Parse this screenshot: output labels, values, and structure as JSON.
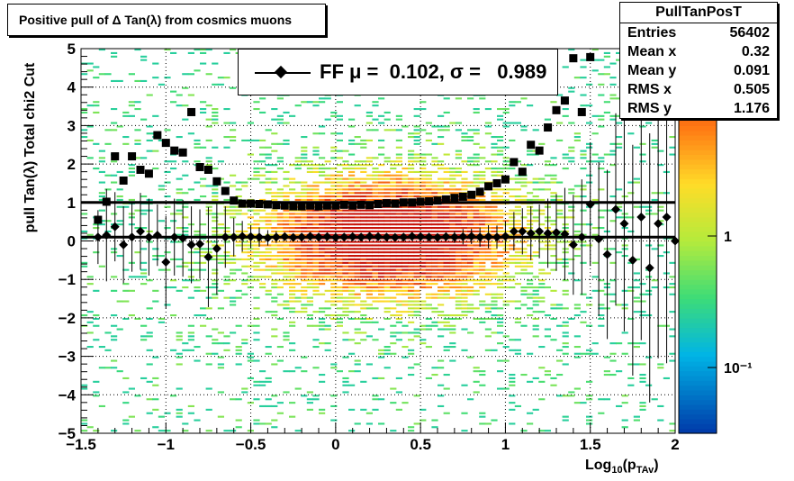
{
  "title": "Positive pull of Δ Tan(λ) from cosmics muons",
  "stats": {
    "name": "PullTanPosT",
    "rows": [
      {
        "k": "Entries",
        "v": "56402"
      },
      {
        "k": "Mean x",
        "v": "0.32"
      },
      {
        "k": "Mean y",
        "v": "0.091"
      },
      {
        "k": "RMS x",
        "v": "0.505"
      },
      {
        "k": "RMS y",
        "v": "1.176"
      }
    ]
  },
  "legend": {
    "text": "FF μ =  0.102, σ =   0.989"
  },
  "chart_data": {
    "type": "heatmap",
    "xlabel": "Log10(pTAv)",
    "ylabel": "pull Tan(λ)  Total chi2 Cut",
    "xlim": [
      -1.5,
      2
    ],
    "ylim": [
      -5,
      5
    ],
    "x_ticks": [
      "−1.5",
      "−1",
      "−0.5",
      "0",
      "0.5",
      "1",
      "1.5",
      "2"
    ],
    "y_ticks": [
      "−5",
      "−4",
      "−3",
      "−2",
      "−1",
      "0",
      "1",
      "2",
      "3",
      "4",
      "5"
    ],
    "colorbar": {
      "scale": "log",
      "tick_labels": [
        "10⁻¹",
        "1"
      ]
    },
    "grid": true,
    "reference_lines": [
      0.1,
      1.0
    ],
    "series": [
      {
        "name": "mean",
        "marker": "diamond",
        "x": [
          -1.4,
          -1.35,
          -1.3,
          -1.25,
          -1.2,
          -1.15,
          -1.1,
          -1.05,
          -1.0,
          -0.95,
          -0.9,
          -0.85,
          -0.8,
          -0.75,
          -0.7,
          -0.65,
          -0.6,
          -0.55,
          -0.5,
          -0.45,
          -0.4,
          -0.35,
          -0.3,
          -0.25,
          -0.2,
          -0.15,
          -0.1,
          -0.05,
          0.0,
          0.05,
          0.1,
          0.15,
          0.2,
          0.25,
          0.3,
          0.35,
          0.4,
          0.45,
          0.5,
          0.55,
          0.6,
          0.65,
          0.7,
          0.75,
          0.8,
          0.85,
          0.9,
          0.95,
          1.0,
          1.05,
          1.1,
          1.15,
          1.2,
          1.25,
          1.3,
          1.35,
          1.4,
          1.45,
          1.5,
          1.55,
          1.6,
          1.65,
          1.7,
          1.75,
          1.8,
          1.85,
          1.9,
          1.95,
          2.0
        ],
        "y": [
          0.1,
          0.15,
          0.37,
          -0.1,
          0.1,
          0.25,
          0.1,
          0.15,
          -0.55,
          0.1,
          0.07,
          -0.1,
          -0.08,
          -0.42,
          -0.2,
          0.1,
          0.1,
          0.12,
          0.11,
          0.1,
          0.08,
          0.1,
          0.11,
          0.09,
          0.1,
          0.12,
          0.1,
          0.11,
          0.09,
          0.1,
          0.11,
          0.1,
          0.12,
          0.11,
          0.1,
          0.09,
          0.1,
          0.12,
          0.11,
          0.1,
          0.09,
          0.11,
          0.1,
          0.11,
          0.12,
          0.1,
          0.11,
          0.1,
          0.12,
          0.25,
          0.25,
          0.2,
          0.25,
          0.2,
          0.22,
          0.18,
          -0.1,
          0.1,
          0.95,
          0.05,
          -0.35,
          0.82,
          0.45,
          -0.5,
          0.62,
          -0.7,
          0.45,
          0.62,
          0.0
        ],
        "err": [
          0.7,
          1.2,
          0.9,
          1.0,
          0.9,
          1.0,
          1.0,
          0.8,
          1.2,
          1.0,
          1.0,
          1.0,
          0.9,
          1.3,
          1.2,
          0.8,
          0.5,
          0.4,
          0.3,
          0.25,
          0.2,
          0.15,
          0.1,
          0.1,
          0.1,
          0.08,
          0.08,
          0.08,
          0.08,
          0.08,
          0.08,
          0.08,
          0.08,
          0.08,
          0.08,
          0.08,
          0.08,
          0.08,
          0.08,
          0.1,
          0.1,
          0.1,
          0.15,
          0.2,
          0.2,
          0.25,
          0.3,
          0.3,
          0.4,
          0.5,
          0.6,
          0.7,
          0.7,
          0.9,
          1.0,
          1.2,
          1.3,
          1.5,
          1.6,
          2.0,
          2.2,
          2.5,
          2.8,
          3.0,
          3.2,
          3.5,
          3.5,
          3.8,
          4.0
        ]
      },
      {
        "name": "RMS",
        "marker": "square",
        "x": [
          -1.4,
          -1.35,
          -1.3,
          -1.25,
          -1.2,
          -1.15,
          -1.1,
          -1.05,
          -1.0,
          -0.95,
          -0.9,
          -0.85,
          -0.8,
          -0.75,
          -0.7,
          -0.65,
          -0.6,
          -0.55,
          -0.5,
          -0.45,
          -0.4,
          -0.35,
          -0.3,
          -0.25,
          -0.2,
          -0.15,
          -0.1,
          -0.05,
          0.0,
          0.05,
          0.1,
          0.15,
          0.2,
          0.25,
          0.3,
          0.35,
          0.4,
          0.45,
          0.5,
          0.55,
          0.6,
          0.65,
          0.7,
          0.75,
          0.8,
          0.85,
          0.9,
          0.95,
          1.0,
          1.05,
          1.1,
          1.15,
          1.2,
          1.25,
          1.3,
          1.35,
          1.4,
          1.45,
          1.5
        ],
        "y": [
          0.55,
          1.02,
          2.2,
          1.57,
          2.2,
          1.85,
          1.75,
          2.75,
          2.55,
          2.35,
          2.3,
          3.35,
          1.92,
          1.85,
          1.55,
          1.3,
          1.05,
          0.97,
          0.97,
          0.96,
          0.95,
          0.93,
          0.92,
          0.9,
          0.9,
          0.92,
          0.9,
          0.92,
          0.92,
          0.94,
          0.92,
          0.94,
          0.93,
          0.96,
          0.98,
          0.97,
          1.0,
          1.0,
          1.02,
          1.03,
          1.05,
          1.08,
          1.12,
          1.15,
          1.2,
          1.28,
          1.42,
          1.5,
          1.6,
          2.05,
          1.8,
          2.5,
          2.35,
          2.95,
          3.4,
          3.65,
          4.75,
          3.35,
          4.78
        ]
      }
    ]
  }
}
